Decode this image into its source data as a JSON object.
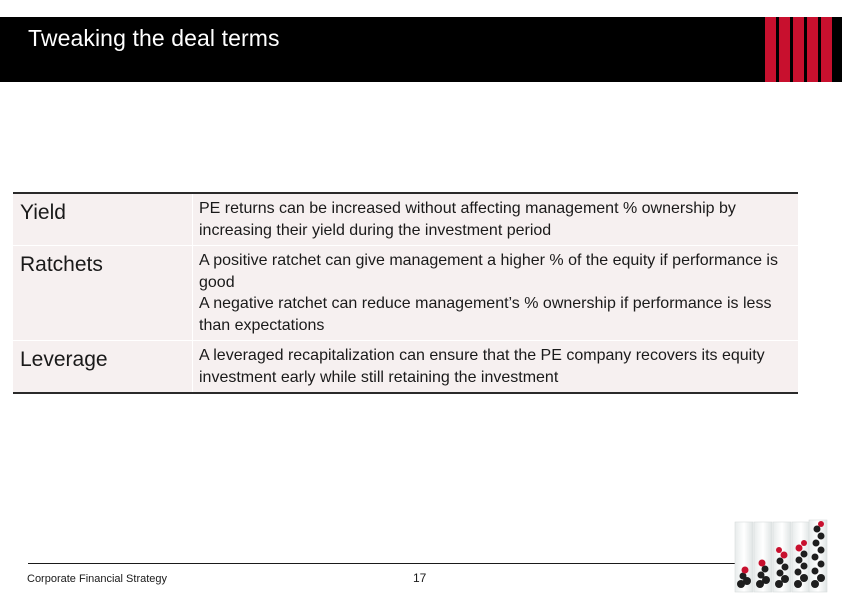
{
  "slide": {
    "title": "Tweaking the deal terms",
    "page_number": "17",
    "footer": "Corporate Financial Strategy"
  },
  "colors": {
    "title_bar": "#000000",
    "accent_red": "#c8102e",
    "table_fill": "#f6f0f0"
  },
  "table": {
    "rows": [
      {
        "term": "Yield",
        "description": [
          "PE returns can be increased without affecting management % ownership by increasing their yield during the investment period"
        ]
      },
      {
        "term": "Ratchets",
        "description": [
          "A positive ratchet can give management a higher % of the equity if performance is good",
          "A negative ratchet can reduce management’s % ownership if performance is less than expectations"
        ]
      },
      {
        "term": "Leverage",
        "description": [
          "A leveraged recapitalization can ensure that the PE company recovers its equity investment early while still retaining the investment"
        ]
      }
    ]
  }
}
